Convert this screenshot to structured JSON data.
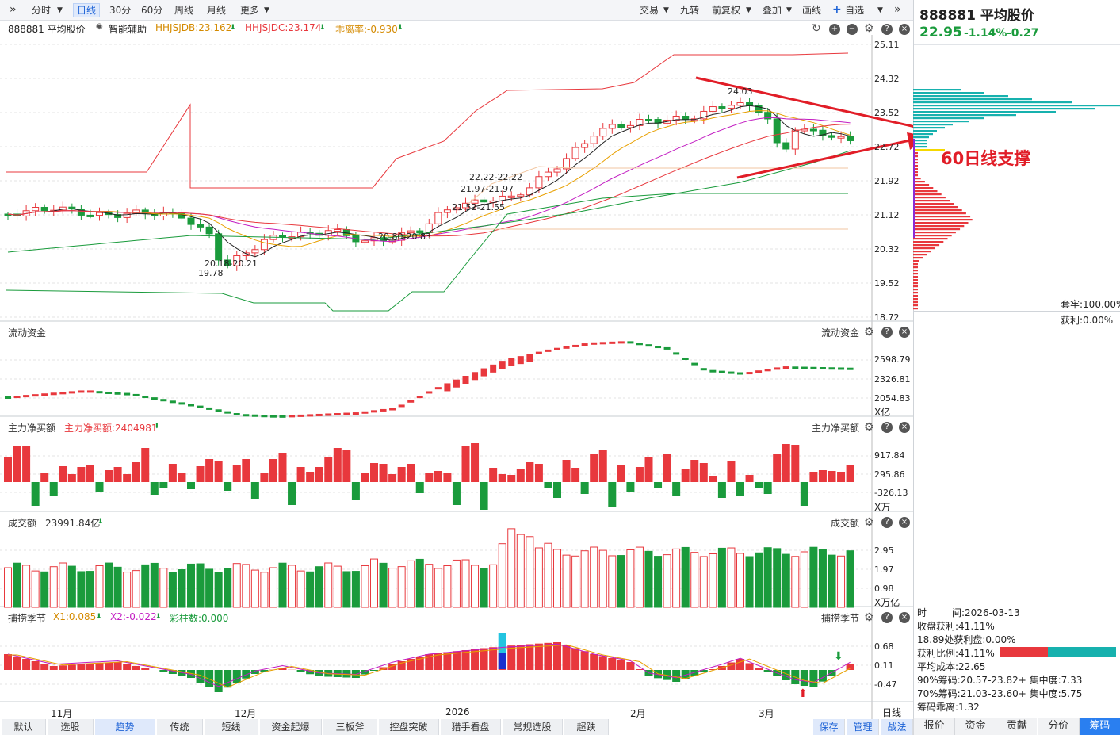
{
  "toolbar": {
    "items": [
      "分时",
      "日线",
      "30分",
      "60分",
      "周线",
      "月线",
      "更多"
    ],
    "active": "日线",
    "right_items": [
      "交易",
      "九转",
      "前复权",
      "叠加",
      "画线",
      "自选"
    ]
  },
  "stock": {
    "code": "888881",
    "name": "平均股价",
    "price": "22.95",
    "pct": "-1.14%",
    "change": "-0.27"
  },
  "legend": {
    "name": "888881 平均股价",
    "assist": "智能辅助",
    "l1": "HHJSJDB:23.162",
    "l2": "HHJSJDC:23.174",
    "l3": "乖离率:-0.930"
  },
  "price_axis": [
    "25.11",
    "24.32",
    "23.52",
    "22.72",
    "21.92",
    "21.12",
    "20.32",
    "19.52",
    "18.72"
  ],
  "price_labels": {
    "high": "24.03",
    "lbl1": "22.22-22.22",
    "lbl2": "21.97-21.97",
    "lbl3": "21.52-21.55",
    "lbl4": "20.80-20.83",
    "lbl5": "20.18-20.21",
    "lbl6": "19.78"
  },
  "annotation": "60日线支撑",
  "chip": {
    "trapped": "套牢:100.00%",
    "profit": "获利:0.00%",
    "time_label": "时",
    "time_value": "间:2026-03-13",
    "close_profit": "收盘获利:41.11%",
    "profit_chips": "18.89处获利盘:0.00%",
    "profit_ratio": "获利比例:41.11%",
    "avg_cost": "平均成本:22.65",
    "c90": "90%筹码:20.57-23.82+ 集中度:7.33",
    "c70": "70%筹码:21.03-23.60+ 集中度:5.75",
    "deviation": "筹码乖离:1.32"
  },
  "panels": {
    "liquidity": {
      "title": "流动资金",
      "axis": [
        "2598.79",
        "2326.81",
        "2054.83"
      ],
      "unit": "X亿"
    },
    "mainflow": {
      "title": "主力净买额",
      "legend": "主力净买额:2404981",
      "axis": [
        "917.84",
        "295.86",
        "-326.13"
      ],
      "unit": "X万"
    },
    "volume": {
      "title": "成交额",
      "legend": "23991.84亿",
      "axis": [
        "2.95",
        "1.97",
        "0.98"
      ],
      "unit": "X万亿"
    },
    "season": {
      "title": "捕捞季节",
      "x1": "X1:0.085",
      "x2": "X2:-0.022",
      "bars": "彩柱数:0.000",
      "axis": [
        "0.68",
        "0.11",
        "-0.47"
      ]
    }
  },
  "months": [
    "11月",
    "12月",
    "2026",
    "2月",
    "3月"
  ],
  "period_label": "日线",
  "bottom_tabs": [
    "默认",
    "选股",
    "趋势",
    "传统",
    "短线",
    "资金起爆",
    "三板斧",
    "控盘突破",
    "猎手看盘",
    "常规选股",
    "超跌"
  ],
  "bottom_active": "趋势",
  "bottom_right": [
    "保存",
    "管理",
    "战法"
  ],
  "right_tabs": [
    "报价",
    "资金",
    "贡献",
    "分价",
    "筹码"
  ],
  "right_active": "筹码",
  "colors": {
    "up": "#e8383d",
    "down": "#1a9b3c",
    "accent": "#1e63d6",
    "annotation": "#e11d27"
  }
}
